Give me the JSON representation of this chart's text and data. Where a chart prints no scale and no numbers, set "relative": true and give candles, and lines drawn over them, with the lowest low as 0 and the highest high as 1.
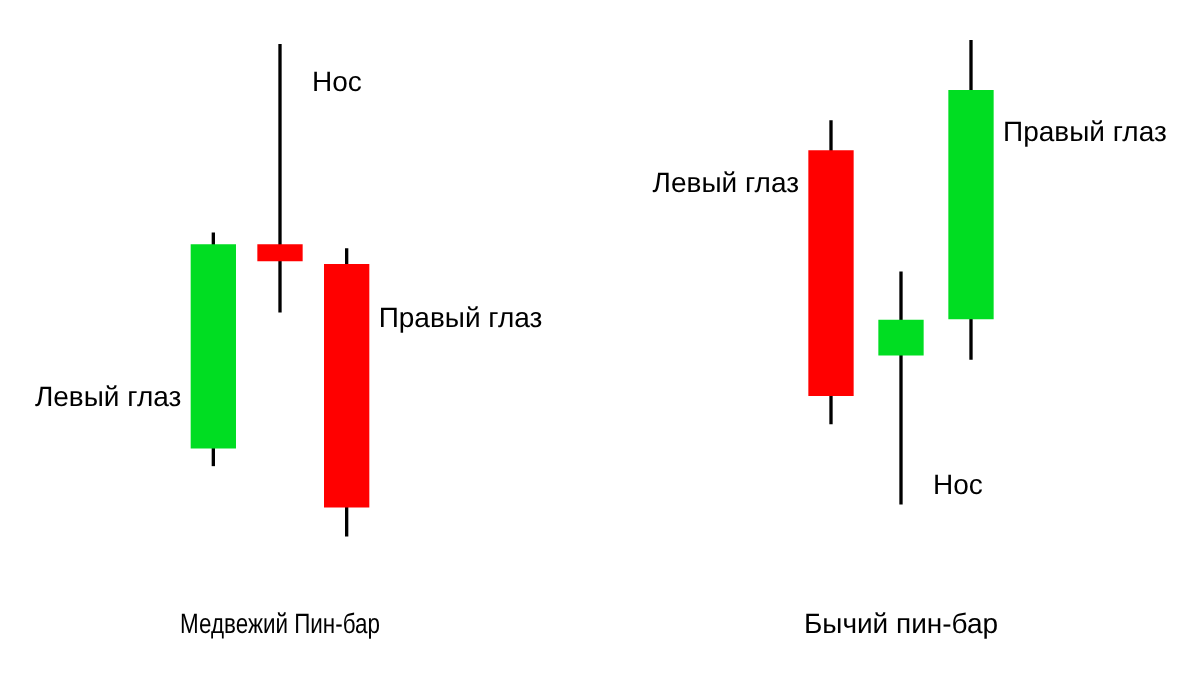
{
  "chart_data": [
    {
      "type": "candlestick",
      "title": "Медвежий Пин-бар",
      "categories": [
        null,
        null,
        null
      ],
      "relative": true,
      "tick_labels": false,
      "ohlc": [
        [
          0.18,
          0.616,
          0.144,
          0.592
        ],
        [
          0.592,
          1,
          0.456,
          0.56
        ],
        [
          0.552,
          0.584,
          0,
          0.06
        ]
      ],
      "colors": [
        "#00dd22",
        "#ff0000",
        "#ff0000"
      ],
      "annotations": [
        "Левый глаз",
        "Нос",
        "Правый глаз"
      ]
    },
    {
      "type": "candlestick",
      "title": "Бычий пин-бар",
      "categories": [
        null,
        null,
        null
      ],
      "relative": true,
      "tick_labels": false,
      "ohlc": [
        [
          0.761,
          0.826,
          0.174,
          0.235
        ],
        [
          0.322,
          0.5,
          0,
          0.396
        ],
        [
          0.4,
          1,
          0.313,
          0.891
        ]
      ],
      "colors": [
        "#ff0000",
        "#00dd22",
        "#00dd22"
      ],
      "annotations": [
        "Левый глаз",
        "Нос",
        "Правый глаз"
      ]
    }
  ]
}
